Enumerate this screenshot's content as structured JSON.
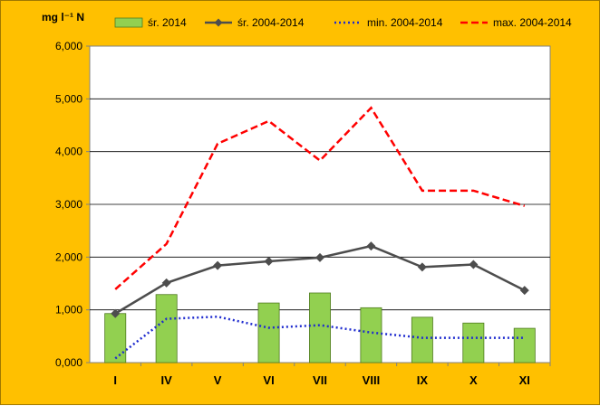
{
  "chart_data": {
    "type": "bar",
    "ylabel_unit": "mg l⁻¹ N",
    "categories": [
      "I",
      "IV",
      "V",
      "VI",
      "VII",
      "VIII",
      "IX",
      "X",
      "XI"
    ],
    "ylim": [
      0,
      6
    ],
    "yticks": [
      0,
      1,
      2,
      3,
      4,
      5,
      6
    ],
    "ytick_labels": [
      "0,000",
      "1,000",
      "2,000",
      "3,000",
      "4,000",
      "5,000",
      "6,000"
    ],
    "grid": true,
    "legend_position": "top",
    "series": [
      {
        "name": "śr. 2014",
        "kind": "bar",
        "color": "#92d050",
        "values": [
          0.93,
          1.29,
          null,
          1.13,
          1.32,
          1.04,
          0.86,
          0.75,
          0.65
        ]
      },
      {
        "name": "śr. 2004-2014",
        "kind": "line-marker",
        "color": "#4d4d4d",
        "values": [
          0.93,
          1.51,
          1.84,
          1.92,
          1.99,
          2.21,
          1.81,
          1.86,
          1.37
        ]
      },
      {
        "name": "min. 2004-2014",
        "kind": "dotted",
        "color": "#1f2ccf",
        "values": [
          0.08,
          0.83,
          0.87,
          0.66,
          0.71,
          0.57,
          0.47,
          0.47,
          0.47
        ]
      },
      {
        "name": "max. 2004-2014",
        "kind": "dashed",
        "color": "#ff0000",
        "values": [
          1.39,
          2.25,
          4.15,
          4.58,
          3.83,
          4.83,
          3.26,
          3.26,
          2.97
        ]
      }
    ]
  }
}
